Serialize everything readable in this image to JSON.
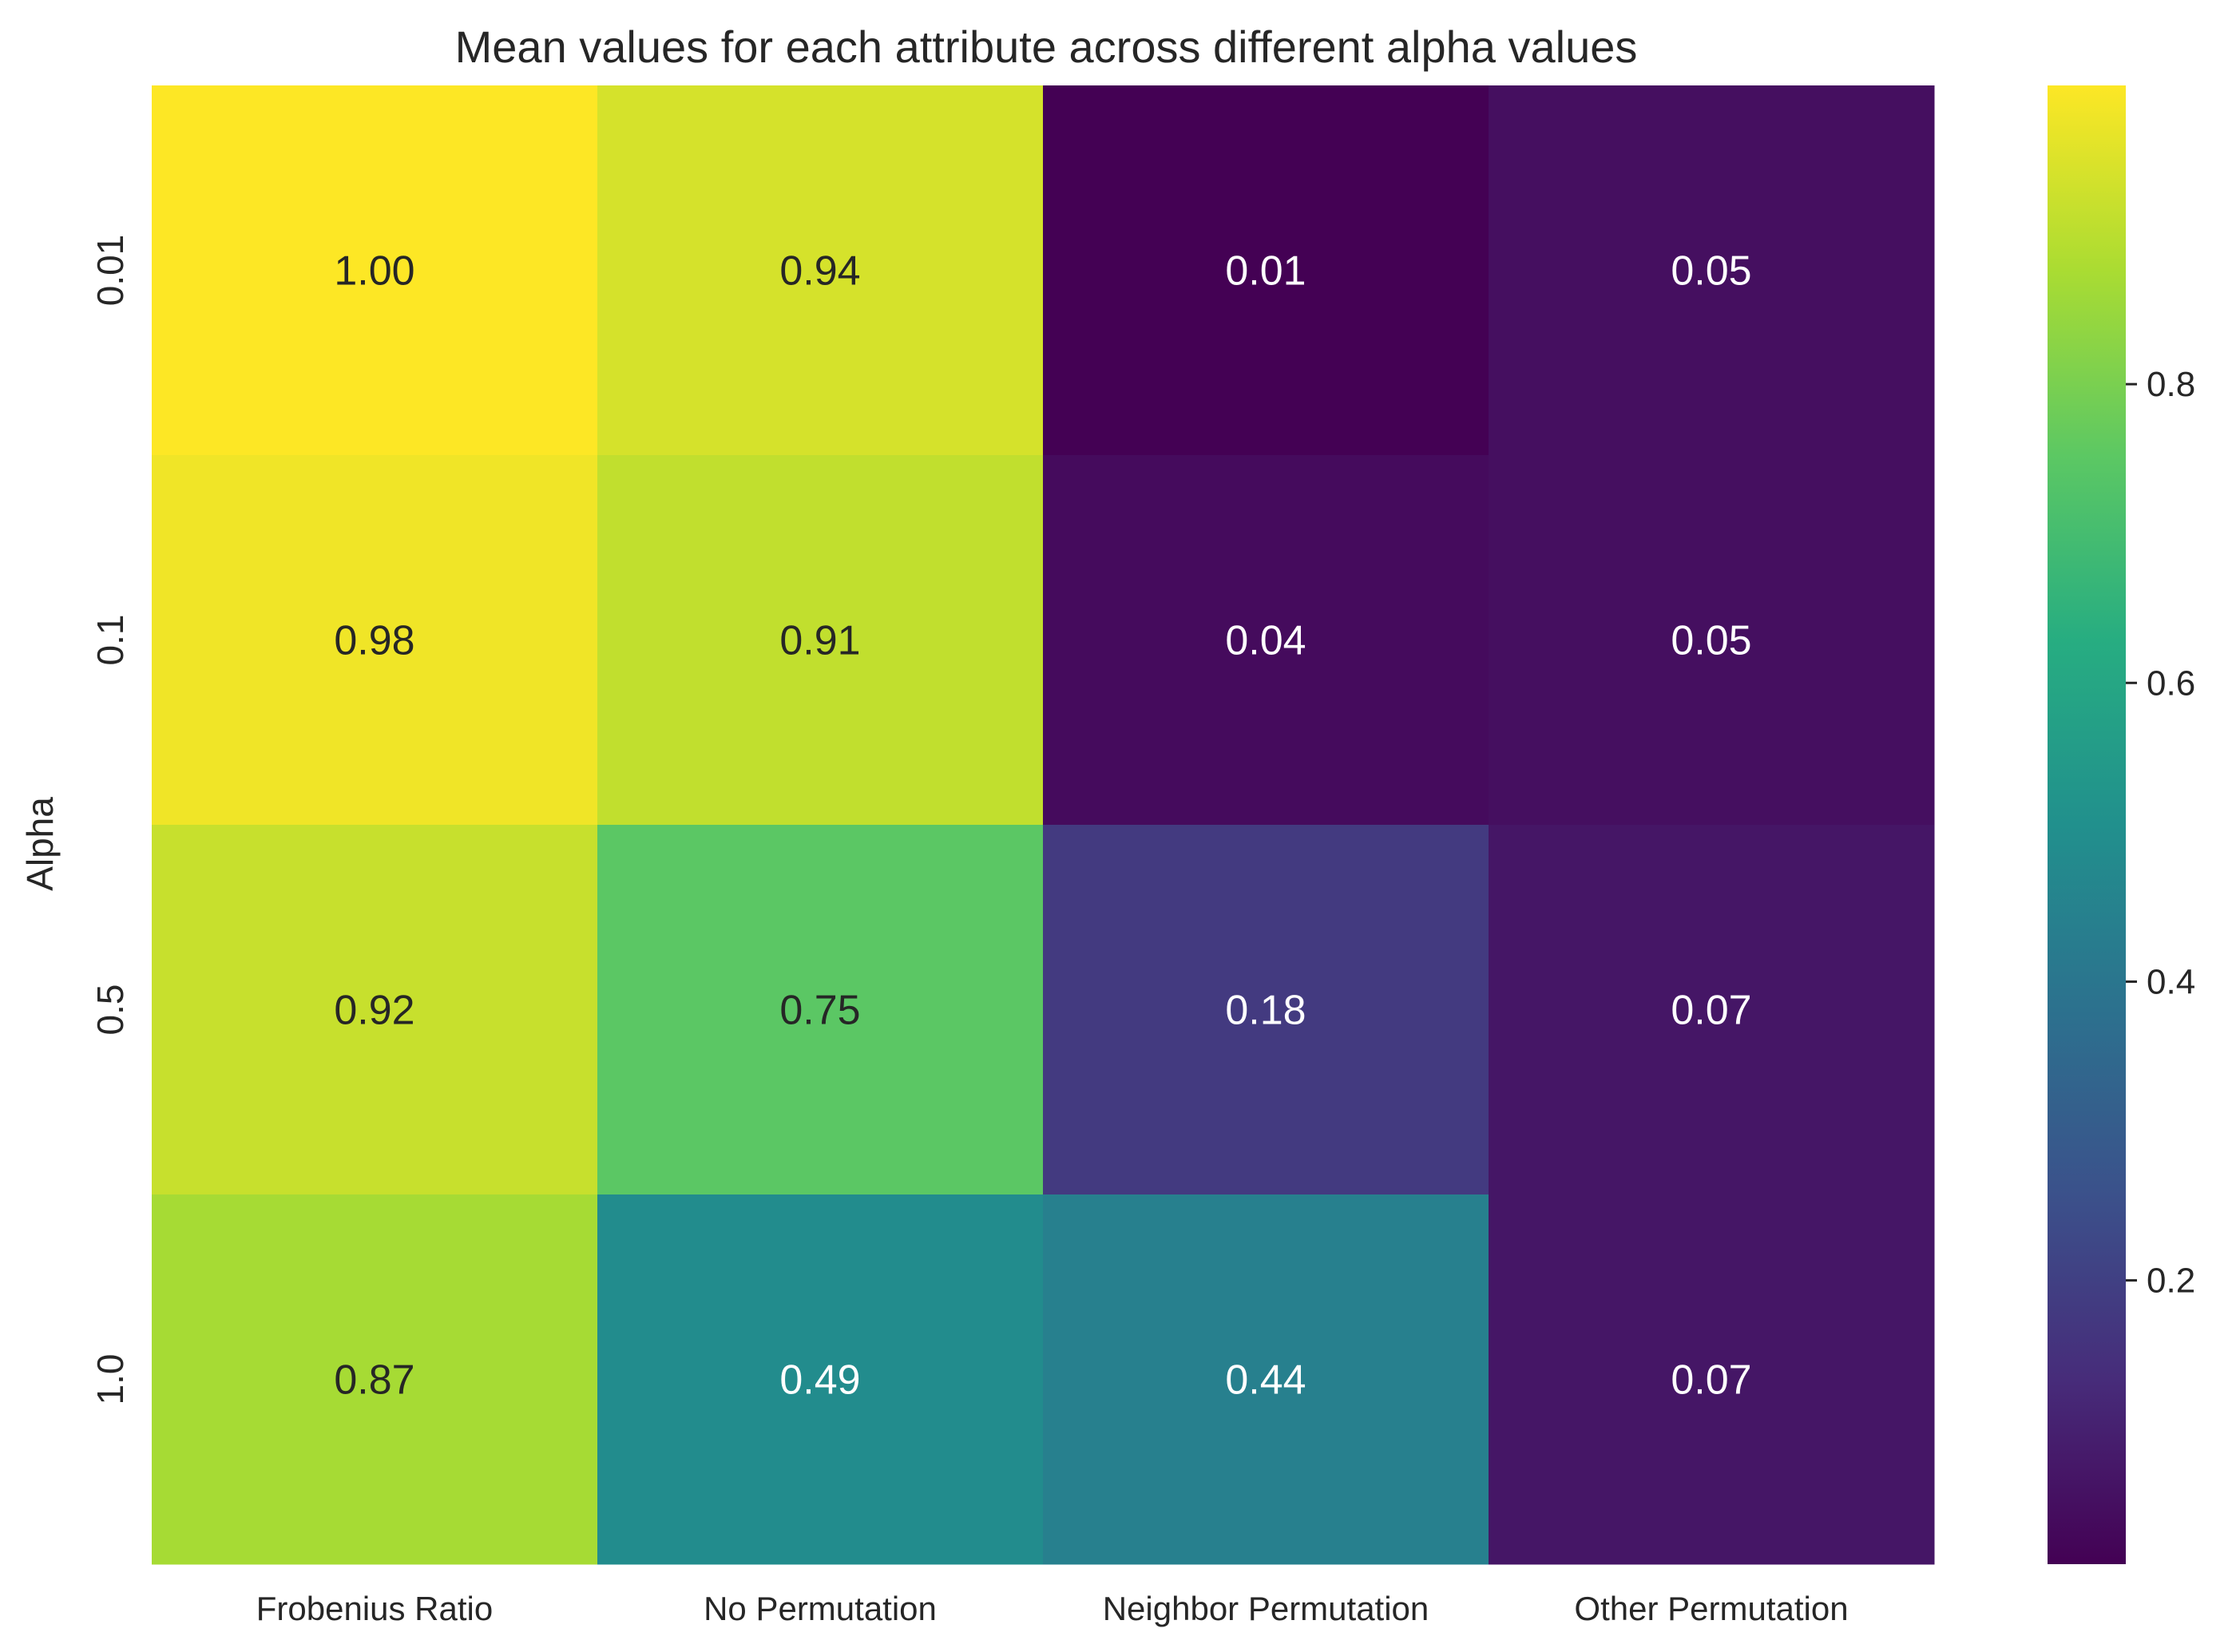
{
  "chart_data": {
    "type": "heatmap",
    "title": "Mean values for each attribute across different alpha values",
    "xlabel": "",
    "ylabel": "Alpha",
    "x_categories": [
      "Frobenius Ratio",
      "No Permutation",
      "Neighbor Permutation",
      "Other Permutation"
    ],
    "y_categories": [
      "0.01",
      "0.1",
      "0.5",
      "1.0"
    ],
    "values": [
      [
        1.0,
        0.94,
        0.01,
        0.05
      ],
      [
        0.98,
        0.91,
        0.04,
        0.05
      ],
      [
        0.92,
        0.75,
        0.18,
        0.07
      ],
      [
        0.87,
        0.49,
        0.44,
        0.07
      ]
    ],
    "value_labels": [
      [
        "1.00",
        "0.94",
        "0.01",
        "0.05"
      ],
      [
        "0.98",
        "0.91",
        "0.04",
        "0.05"
      ],
      [
        "0.92",
        "0.75",
        "0.18",
        "0.07"
      ],
      [
        "0.87",
        "0.49",
        "0.44",
        "0.07"
      ]
    ],
    "colormap": "viridis",
    "color_range": [
      0.01,
      1.0
    ],
    "colorbar_ticks": [
      0.2,
      0.4,
      0.6,
      0.8
    ],
    "colorbar_tick_labels": [
      "0.2",
      "0.4",
      "0.6",
      "0.8"
    ],
    "annotation_colors": {
      "dark_text": "#262626",
      "light_text": "#ffffff"
    },
    "grid": false,
    "legend": "colorbar-right"
  }
}
